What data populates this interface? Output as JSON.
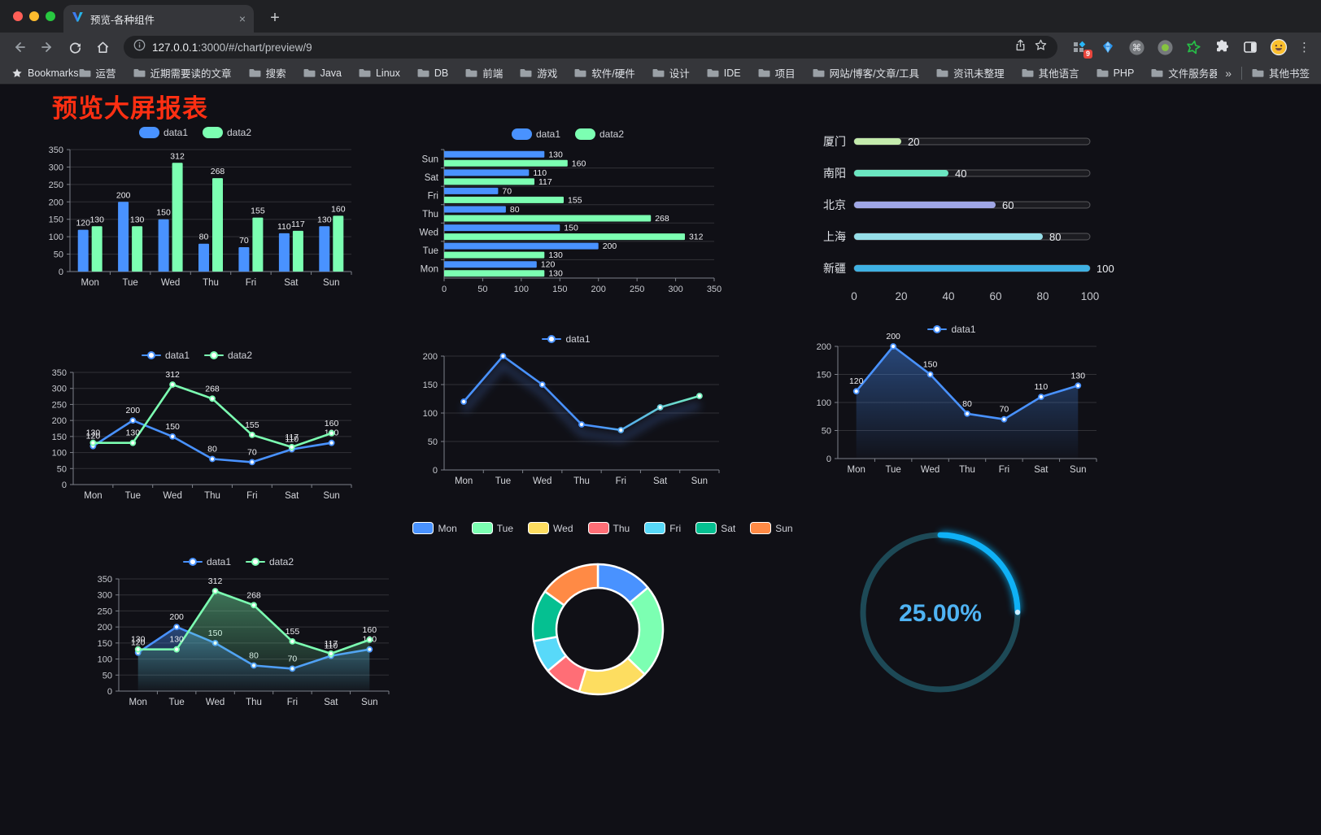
{
  "browser": {
    "traffic_lights": [
      "#ff5f57",
      "#febc2e",
      "#28c840"
    ],
    "tab": {
      "title": "预览-各种组件"
    },
    "url": {
      "host": "127.0.0.1",
      "rest": ":3000/#/chart/preview/9"
    },
    "extensions_badge": "9",
    "bookmarks_label": "Bookmarks",
    "bookmarks": [
      "运营",
      "近期需要读的文章",
      "搜索",
      "Java",
      "Linux",
      "DB",
      "前端",
      "游戏",
      "软件/硬件",
      "设计",
      "IDE",
      "项目",
      "网站/博客/文章/工具",
      "资讯未整理",
      "其他语言",
      "PHP",
      "文件服务器"
    ],
    "bookmarks_overflow": "»",
    "other_bookmarks": "其他书签"
  },
  "page": {
    "title": "预览大屏报表",
    "title_color": "#ff2f12"
  },
  "chart_data": [
    {
      "id": "grouped-bar",
      "type": "bar",
      "categories": [
        "Mon",
        "Tue",
        "Wed",
        "Thu",
        "Fri",
        "Sat",
        "Sun"
      ],
      "series": [
        {
          "name": "data1",
          "color": "#4992ff",
          "values": [
            120,
            200,
            150,
            80,
            70,
            110,
            130
          ]
        },
        {
          "name": "data2",
          "color": "#7cffb2",
          "values": [
            130,
            130,
            312,
            268,
            155,
            117,
            160
          ]
        }
      ],
      "ylim": [
        0,
        350
      ],
      "ystep": 50,
      "legend": "pill",
      "legend_position": "top",
      "grid": true,
      "value_labels": true
    },
    {
      "id": "grouped-bar-horizontal",
      "type": "bar-horizontal",
      "categories": [
        "Mon",
        "Tue",
        "Wed",
        "Thu",
        "Fri",
        "Sat",
        "Sun"
      ],
      "series": [
        {
          "name": "data1",
          "color": "#4992ff",
          "values": [
            120,
            200,
            150,
            80,
            70,
            110,
            130
          ]
        },
        {
          "name": "data2",
          "color": "#7cffb2",
          "values": [
            130,
            130,
            312,
            268,
            155,
            117,
            160
          ]
        }
      ],
      "xlim": [
        0,
        350
      ],
      "xstep": 50,
      "legend": "pill",
      "value_labels": true
    },
    {
      "id": "region-progress",
      "type": "progress",
      "items": [
        {
          "label": "厦门",
          "value": 20,
          "color": "#c4ebad"
        },
        {
          "label": "南阳",
          "value": 40,
          "color": "#6be6c1"
        },
        {
          "label": "北京",
          "value": 60,
          "color": "#a0a7e6"
        },
        {
          "label": "上海",
          "value": 80,
          "color": "#96dee8"
        },
        {
          "label": "新疆",
          "value": 100,
          "color": "#3fb1e3"
        }
      ],
      "xlim": [
        0,
        100
      ],
      "xticks": [
        0,
        20,
        40,
        60,
        80,
        100
      ]
    },
    {
      "id": "line-two-series",
      "type": "line",
      "categories": [
        "Mon",
        "Tue",
        "Wed",
        "Thu",
        "Fri",
        "Sat",
        "Sun"
      ],
      "series": [
        {
          "name": "data1",
          "color": "#4992ff",
          "values": [
            120,
            200,
            150,
            80,
            70,
            110,
            130
          ]
        },
        {
          "name": "data2",
          "color": "#7cffb2",
          "values": [
            130,
            130,
            312,
            268,
            155,
            117,
            160
          ]
        }
      ],
      "ylim": [
        0,
        350
      ],
      "ystep": 50,
      "legend": "line",
      "value_labels": true
    },
    {
      "id": "line-gradient",
      "type": "line",
      "categories": [
        "Mon",
        "Tue",
        "Wed",
        "Thu",
        "Fri",
        "Sat",
        "Sun"
      ],
      "series": [
        {
          "name": "data1",
          "color": "#4992ff",
          "color_end": "#7cffb2",
          "gradient": true,
          "values": [
            120,
            200,
            150,
            80,
            70,
            110,
            130
          ]
        }
      ],
      "ylim": [
        0,
        200
      ],
      "ystep": 50,
      "legend": "line",
      "value_labels": false,
      "shadow": true
    },
    {
      "id": "line-area",
      "type": "line",
      "categories": [
        "Mon",
        "Tue",
        "Wed",
        "Thu",
        "Fri",
        "Sat",
        "Sun"
      ],
      "series": [
        {
          "name": "data1",
          "color": "#4992ff",
          "area": true,
          "values": [
            120,
            200,
            150,
            80,
            70,
            110,
            130
          ]
        }
      ],
      "ylim": [
        0,
        200
      ],
      "ystep": 50,
      "legend": "line",
      "value_labels": true
    },
    {
      "id": "line-area-two",
      "type": "line",
      "categories": [
        "Mon",
        "Tue",
        "Wed",
        "Thu",
        "Fri",
        "Sat",
        "Sun"
      ],
      "series": [
        {
          "name": "data1",
          "color": "#4992ff",
          "area": true,
          "values": [
            120,
            200,
            150,
            80,
            70,
            110,
            130
          ]
        },
        {
          "name": "data2",
          "color": "#7cffb2",
          "area": true,
          "values": [
            130,
            130,
            312,
            268,
            155,
            117,
            160
          ]
        }
      ],
      "ylim": [
        0,
        350
      ],
      "ystep": 50,
      "legend": "line",
      "value_labels": true
    },
    {
      "id": "donut",
      "type": "donut",
      "legend": "pill-border",
      "labels": [
        "Mon",
        "Tue",
        "Wed",
        "Thu",
        "Fri",
        "Sat",
        "Sun"
      ],
      "values": [
        120,
        200,
        150,
        80,
        70,
        110,
        130
      ],
      "colors": [
        "#4992ff",
        "#7cffb2",
        "#fddd60",
        "#ff6e76",
        "#58d9f9",
        "#05c091",
        "#ff8a45"
      ]
    },
    {
      "id": "gauge",
      "type": "gauge",
      "value": 25,
      "max": 100,
      "display": "25.00%",
      "color": "#0fb1f6",
      "track_color": "#1d4956",
      "text_color": "#4fb3f3"
    }
  ]
}
